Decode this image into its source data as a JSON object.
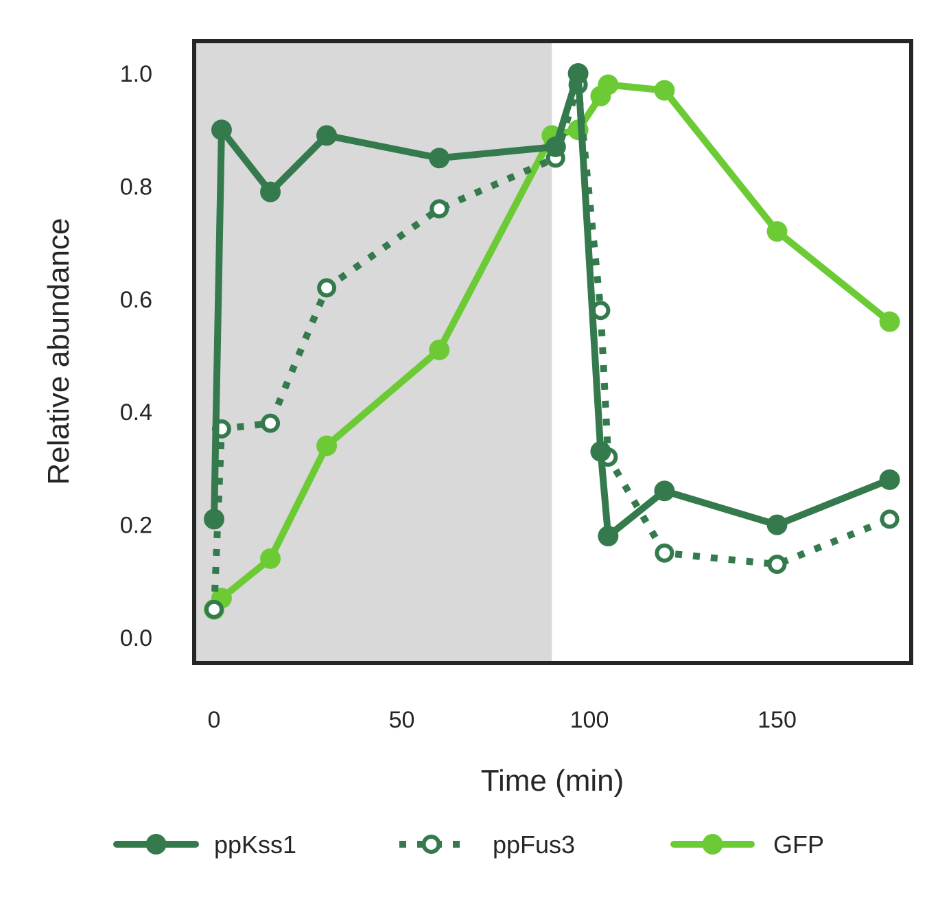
{
  "chart_data": {
    "type": "line",
    "xlabel": "Time (min)",
    "ylabel": "Relative abundance",
    "xlim": [
      -5,
      187
    ],
    "ylim": [
      -0.05,
      1.05
    ],
    "xticks": [
      0,
      50,
      100,
      150
    ],
    "yticks": [
      0.0,
      0.2,
      0.4,
      0.6,
      0.8,
      1.0
    ],
    "xtick_labels": [
      "0",
      "50",
      "100",
      "150"
    ],
    "ytick_labels": [
      "0.0",
      "0.2",
      "0.4",
      "0.6",
      "0.8",
      "1.0"
    ],
    "shaded_region": {
      "x_start": -5,
      "x_end": 90,
      "color": "#d9d9d9"
    },
    "grid": false,
    "legend_position": "bottom",
    "series": [
      {
        "name": "ppKss1",
        "color": "#347a4d",
        "line_style": "solid",
        "marker": "filled",
        "x": [
          0,
          2,
          15,
          30,
          60,
          91,
          97,
          103,
          105,
          120,
          150,
          180
        ],
        "y": [
          0.21,
          0.9,
          0.79,
          0.89,
          0.85,
          0.87,
          1.0,
          0.33,
          0.18,
          0.26,
          0.2,
          0.28
        ]
      },
      {
        "name": "ppFus3",
        "color": "#347a4d",
        "line_style": "dotted",
        "marker": "open",
        "x": [
          0,
          2,
          15,
          30,
          60,
          91,
          97,
          103,
          105,
          120,
          150,
          180
        ],
        "y": [
          0.05,
          0.37,
          0.38,
          0.62,
          0.76,
          0.85,
          0.98,
          0.58,
          0.32,
          0.15,
          0.13,
          0.21
        ]
      },
      {
        "name": "GFP",
        "color": "#6ccb35",
        "line_style": "solid",
        "marker": "filled",
        "x": [
          0,
          2,
          15,
          30,
          60,
          90,
          97,
          103,
          105,
          120,
          150,
          180
        ],
        "y": [
          0.05,
          0.07,
          0.14,
          0.34,
          0.51,
          0.89,
          0.9,
          0.96,
          0.98,
          0.97,
          0.72,
          0.56
        ]
      }
    ]
  }
}
